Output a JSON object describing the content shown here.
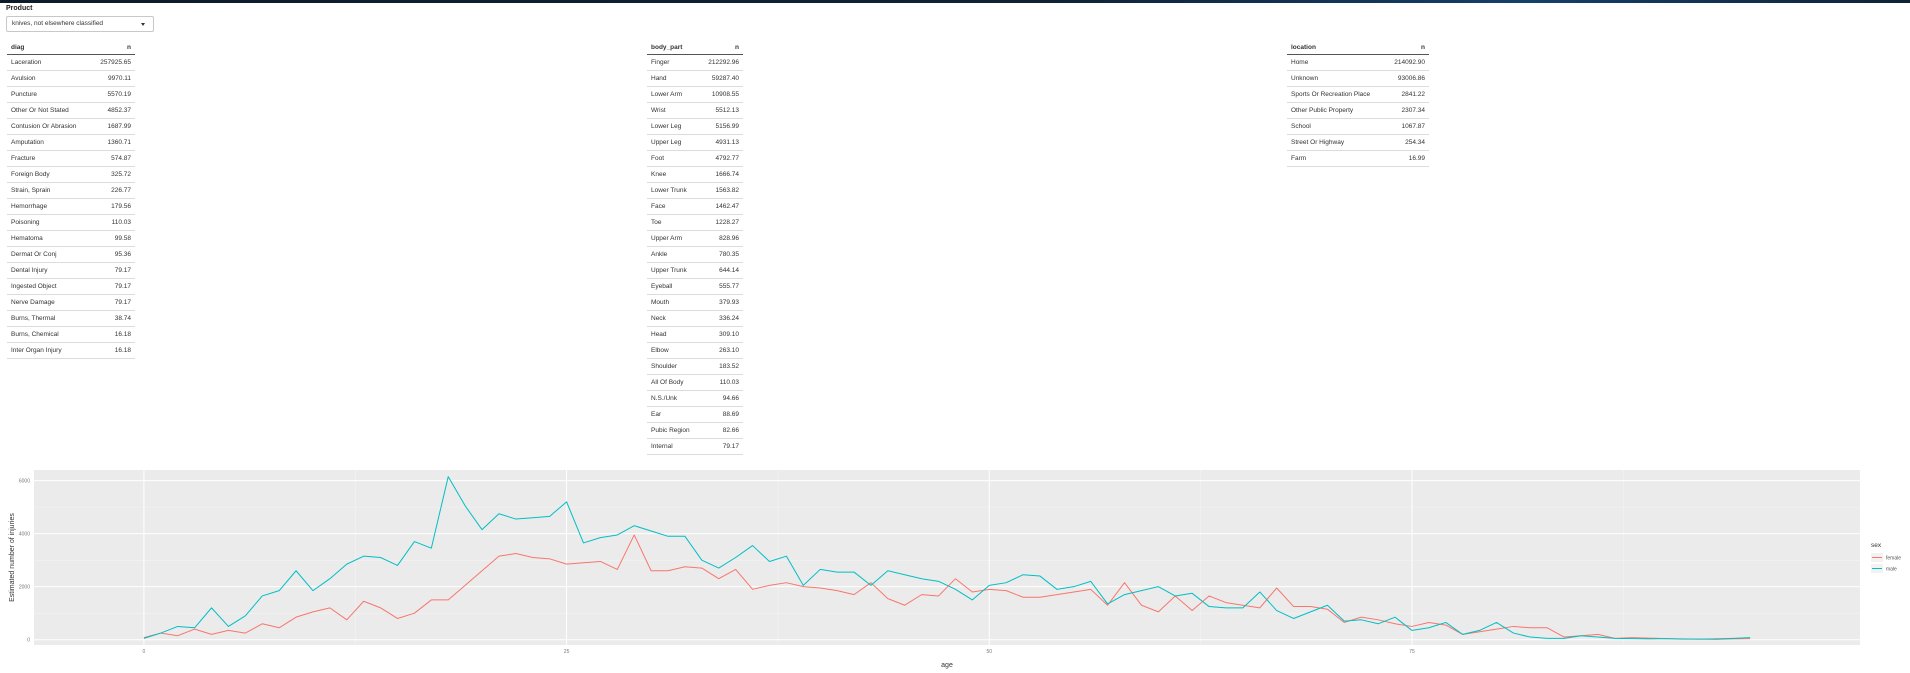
{
  "product": {
    "label": "Product",
    "selected": "knives, not elsewhere classified"
  },
  "tables": {
    "diag": {
      "header": {
        "col": "diag",
        "n": "n"
      },
      "rows": [
        [
          "Laceration",
          "257925.65"
        ],
        [
          "Avulsion",
          "9970.11"
        ],
        [
          "Puncture",
          "5570.19"
        ],
        [
          "Other Or Not Stated",
          "4852.37"
        ],
        [
          "Contusion Or Abrasion",
          "1687.99"
        ],
        [
          "Amputation",
          "1360.71"
        ],
        [
          "Fracture",
          "574.87"
        ],
        [
          "Foreign Body",
          "325.72"
        ],
        [
          "Strain, Sprain",
          "226.77"
        ],
        [
          "Hemorrhage",
          "179.56"
        ],
        [
          "Poisoning",
          "110.03"
        ],
        [
          "Hematoma",
          "99.58"
        ],
        [
          "Dermat Or Conj",
          "95.36"
        ],
        [
          "Dental Injury",
          "79.17"
        ],
        [
          "Ingested Object",
          "79.17"
        ],
        [
          "Nerve Damage",
          "79.17"
        ],
        [
          "Burns, Thermal",
          "38.74"
        ],
        [
          "Burns, Chemical",
          "16.18"
        ],
        [
          "Inter Organ Injury",
          "16.18"
        ]
      ]
    },
    "body_part": {
      "header": {
        "col": "body_part",
        "n": "n"
      },
      "rows": [
        [
          "Finger",
          "212292.96"
        ],
        [
          "Hand",
          "59287.40"
        ],
        [
          "Lower Arm",
          "10908.55"
        ],
        [
          "Wrist",
          "5512.13"
        ],
        [
          "Lower Leg",
          "5156.99"
        ],
        [
          "Upper Leg",
          "4931.13"
        ],
        [
          "Foot",
          "4792.77"
        ],
        [
          "Knee",
          "1666.74"
        ],
        [
          "Lower Trunk",
          "1563.82"
        ],
        [
          "Face",
          "1462.47"
        ],
        [
          "Toe",
          "1228.27"
        ],
        [
          "Upper Arm",
          "828.96"
        ],
        [
          "Ankle",
          "780.35"
        ],
        [
          "Upper Trunk",
          "644.14"
        ],
        [
          "Eyeball",
          "555.77"
        ],
        [
          "Mouth",
          "379.93"
        ],
        [
          "Neck",
          "336.24"
        ],
        [
          "Head",
          "309.10"
        ],
        [
          "Elbow",
          "263.10"
        ],
        [
          "Shoulder",
          "183.52"
        ],
        [
          "All Of Body",
          "110.03"
        ],
        [
          "N.S./Unk",
          "94.66"
        ],
        [
          "Ear",
          "88.69"
        ],
        [
          "Pubic Region",
          "82.66"
        ],
        [
          "Internal",
          "79.17"
        ]
      ]
    },
    "location": {
      "header": {
        "col": "location",
        "n": "n"
      },
      "rows": [
        [
          "Home",
          "214092.90"
        ],
        [
          "Unknown",
          "93006.86"
        ],
        [
          "Sports Or Recreation Place",
          "2841.22"
        ],
        [
          "Other Public Property",
          "2307.34"
        ],
        [
          "School",
          "1067.87"
        ],
        [
          "Street Or Highway",
          "254.34"
        ],
        [
          "Farm",
          "16.99"
        ]
      ]
    }
  },
  "chart_data": {
    "type": "line",
    "xlabel": "age",
    "ylabel": "Estimated number of injuries",
    "xlim": [
      -6.5,
      101.5
    ],
    "ylim": [
      -200,
      6400
    ],
    "x_ticks": [
      0,
      25,
      50,
      75
    ],
    "y_ticks": [
      0,
      2000,
      4000,
      6000
    ],
    "y_tick_labels": [
      "0",
      "2000",
      "4000",
      "6000"
    ],
    "legend_title": "sex",
    "legend_position": "right",
    "background": "#ebebeb",
    "grid": true,
    "series": [
      {
        "name": "female",
        "color": "#F8766D",
        "x_start": 0,
        "values": [
          80,
          250,
          150,
          400,
          200,
          350,
          250,
          600,
          450,
          850,
          1050,
          1200,
          750,
          1450,
          1200,
          800,
          1000,
          1500,
          1500,
          2050,
          2600,
          3150,
          3250,
          3100,
          3050,
          2850,
          2900,
          2950,
          2650,
          3950,
          2600,
          2600,
          2750,
          2700,
          2300,
          2650,
          1900,
          2050,
          2150,
          2000,
          1950,
          1850,
          1700,
          2150,
          1550,
          1300,
          1700,
          1650,
          2300,
          1800,
          1900,
          1850,
          1600,
          1600,
          1700,
          1800,
          1900,
          1300,
          2150,
          1300,
          1050,
          1650,
          1100,
          1650,
          1400,
          1300,
          1200,
          1950,
          1250,
          1250,
          1150,
          650,
          850,
          750,
          600,
          500,
          650,
          550,
          200,
          300,
          400,
          500,
          450,
          450,
          100,
          150,
          200,
          50,
          80,
          60,
          40,
          30,
          20,
          10,
          30,
          40
        ],
        "note": ""
      },
      {
        "name": "male",
        "color": "#00BFC4",
        "x_start": 0,
        "values": [
          50,
          250,
          500,
          450,
          1200,
          500,
          900,
          1650,
          1850,
          2600,
          1850,
          2300,
          2850,
          3150,
          3100,
          2800,
          3700,
          3450,
          6150,
          5050,
          4150,
          4750,
          4550,
          4600,
          4650,
          5200,
          3650,
          3850,
          3950,
          4300,
          4100,
          3900,
          3900,
          3000,
          2700,
          3100,
          3550,
          2950,
          3150,
          2050,
          2650,
          2550,
          2550,
          2050,
          2600,
          2450,
          2300,
          2200,
          1900,
          1500,
          2050,
          2150,
          2450,
          2400,
          1900,
          2000,
          2200,
          1350,
          1700,
          1850,
          2000,
          1650,
          1750,
          1250,
          1200,
          1200,
          1800,
          1100,
          800,
          1050,
          1300,
          700,
          750,
          600,
          850,
          350,
          450,
          650,
          200,
          350,
          650,
          250,
          100,
          50,
          50,
          150,
          100,
          50,
          40,
          30,
          40,
          20,
          20,
          30,
          50,
          80
        ],
        "note": ""
      }
    ]
  }
}
